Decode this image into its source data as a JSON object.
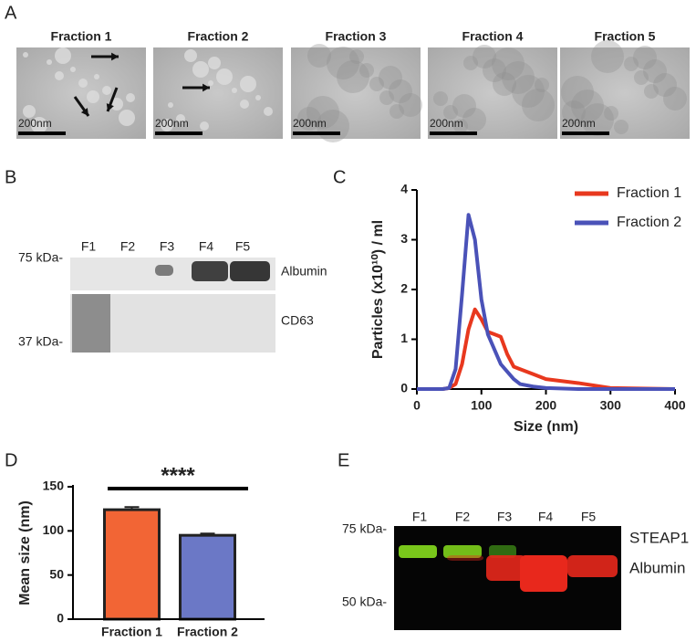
{
  "panel_labels": [
    "A",
    "B",
    "C",
    "D",
    "E"
  ],
  "panel_a": {
    "titles": [
      "Fraction 1",
      "Fraction 2",
      "Fraction 3",
      "Fraction 4",
      "Fraction 5"
    ],
    "scale_label": "200nm"
  },
  "panel_b": {
    "lanes": [
      "F1",
      "F2",
      "F3",
      "F4",
      "F5"
    ],
    "markers": [
      "75 kDa-",
      "37 kDa-"
    ],
    "proteins": [
      "Albumin",
      "CD63"
    ]
  },
  "panel_e": {
    "lanes": [
      "F1",
      "F2",
      "F3",
      "F4",
      "F5"
    ],
    "markers": [
      "75 kDa-",
      "50 kDa-"
    ],
    "proteins": [
      "STEAP1",
      "Albumin"
    ]
  },
  "chart_data": [
    {
      "type": "line",
      "xlabel": "Size (nm)",
      "ylabel": "Particles (x10¹⁰) / ml",
      "x": [
        0,
        40,
        50,
        60,
        70,
        80,
        90,
        100,
        110,
        120,
        130,
        140,
        150,
        160,
        180,
        200,
        250,
        300,
        400
      ],
      "series": [
        {
          "name": "Fraction 1",
          "color": "#e8381e",
          "values": [
            0,
            0,
            0.02,
            0.1,
            0.5,
            1.2,
            1.6,
            1.4,
            1.15,
            1.1,
            1.05,
            0.7,
            0.45,
            0.4,
            0.3,
            0.2,
            0.12,
            0.02,
            0
          ]
        },
        {
          "name": "Fraction 2",
          "color": "#4a52b8",
          "values": [
            0,
            0,
            0.02,
            0.4,
            1.9,
            3.5,
            3.0,
            1.8,
            1.1,
            0.8,
            0.5,
            0.35,
            0.2,
            0.1,
            0.05,
            0.02,
            0,
            0,
            0
          ]
        }
      ],
      "xlim": [
        0,
        400
      ],
      "xticks": [
        0,
        100,
        200,
        300,
        400
      ],
      "ylim": [
        0,
        4
      ],
      "yticks": [
        0,
        1,
        2,
        3,
        4
      ],
      "legend": "upper right"
    },
    {
      "type": "bar",
      "ylabel": "Mean size (nm)",
      "categories": [
        "Fraction 1",
        "Fraction 2"
      ],
      "values": [
        124,
        95
      ],
      "errors": [
        3,
        2
      ],
      "colors": [
        "#f26535",
        "#6b78c6"
      ],
      "ylim": [
        0,
        150
      ],
      "yticks": [
        0,
        50,
        100,
        150
      ],
      "annotation": "****"
    }
  ]
}
